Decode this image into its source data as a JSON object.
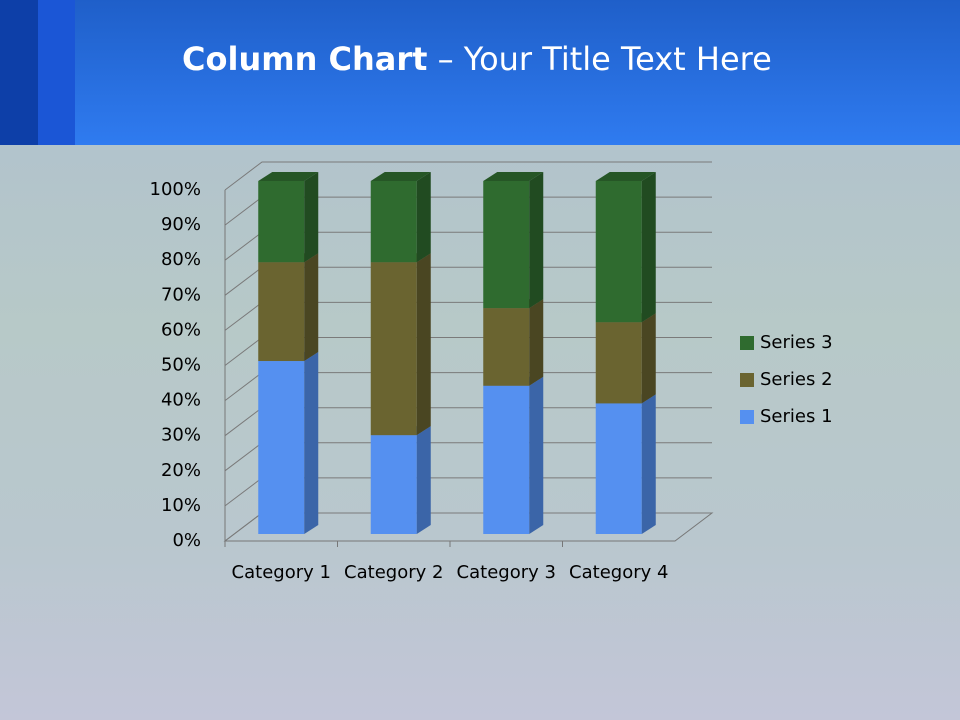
{
  "slide": {
    "title_bold": "Column Chart",
    "title_rest": "– Your Title Text Here"
  },
  "chart_data": {
    "type": "stacked_column_100",
    "categories": [
      "Category 1",
      "Category 2",
      "Category 3",
      "Category 4"
    ],
    "series": [
      {
        "name": "Series 1",
        "color": "#5590f0",
        "values": [
          49,
          28,
          42,
          37
        ]
      },
      {
        "name": "Series 2",
        "color": "#6a6430",
        "values": [
          28,
          49,
          22,
          23
        ]
      },
      {
        "name": "Series 3",
        "color": "#2f6b2f",
        "values": [
          23,
          23,
          36,
          40
        ]
      }
    ],
    "ylim": [
      0,
      100
    ],
    "yticks": [
      {
        "value": 0,
        "label": "0%"
      },
      {
        "value": 10,
        "label": "10%"
      },
      {
        "value": 20,
        "label": "20%"
      },
      {
        "value": 30,
        "label": "30%"
      },
      {
        "value": 40,
        "label": "40%"
      },
      {
        "value": 50,
        "label": "50%"
      },
      {
        "value": 60,
        "label": "60%"
      },
      {
        "value": 70,
        "label": "70%"
      },
      {
        "value": 80,
        "label": "80%"
      },
      {
        "value": 90,
        "label": "90%"
      },
      {
        "value": 100,
        "label": "100%"
      }
    ],
    "grid": true,
    "legend": "right"
  }
}
